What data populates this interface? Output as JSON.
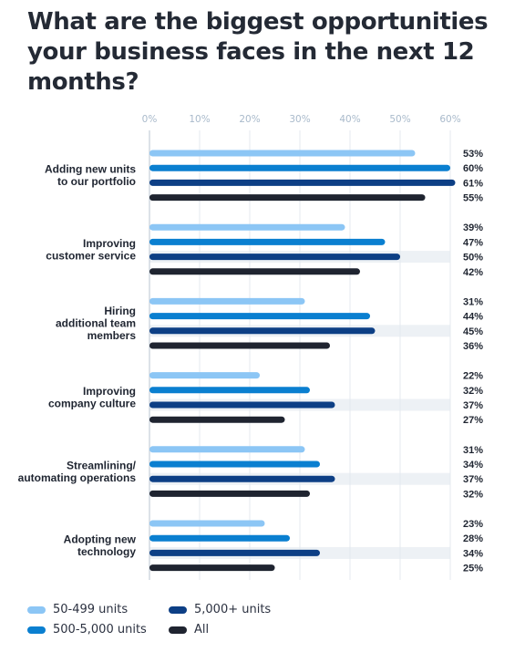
{
  "title": "What are the biggest opportunities your business faces in the next 12 months?",
  "colors": {
    "s1": "#8cc6f5",
    "s2": "#0a7fd0",
    "s3": "#0d3f85",
    "s4": "#1f2430",
    "tick": "#a9bacb",
    "grid": "#e4e9ef",
    "band": "#edf1f5",
    "label": "#1f2531"
  },
  "chart_data": {
    "type": "bar",
    "orientation": "horizontal",
    "xlim": [
      0,
      60
    ],
    "ticks": [
      "0%",
      "10%",
      "20%",
      "30%",
      "40%",
      "50%",
      "60%"
    ],
    "tick_values": [
      0,
      10,
      20,
      30,
      40,
      50,
      60
    ],
    "categories": [
      [
        "Adding new units",
        "to our portfolio"
      ],
      [
        "Improving",
        "customer service"
      ],
      [
        "Hiring",
        "additional team",
        "members"
      ],
      [
        "Improving",
        "company culture"
      ],
      [
        "Streamlining/",
        "automating operations"
      ],
      [
        "Adopting new",
        "technology"
      ]
    ],
    "series": [
      {
        "name": "50-499 units",
        "color": "#8cc6f5",
        "values": [
          53,
          39,
          31,
          22,
          31,
          23
        ]
      },
      {
        "name": "500-5,000 units",
        "color": "#0a7fd0",
        "values": [
          60,
          47,
          44,
          32,
          34,
          28
        ]
      },
      {
        "name": "5,000+ units",
        "color": "#0d3f85",
        "values": [
          61,
          50,
          45,
          37,
          37,
          34
        ]
      },
      {
        "name": "All",
        "color": "#1f2430",
        "values": [
          55,
          42,
          36,
          27,
          32,
          25
        ]
      }
    ],
    "value_labels": [
      [
        "53%",
        "60%",
        "61%",
        "55%"
      ],
      [
        "39%",
        "47%",
        "50%",
        "42%"
      ],
      [
        "31%",
        "44%",
        "45%",
        "36%"
      ],
      [
        "22%",
        "32%",
        "37%",
        "27%"
      ],
      [
        "31%",
        "34%",
        "37%",
        "32%"
      ],
      [
        "23%",
        "28%",
        "34%",
        "25%"
      ]
    ],
    "legend_position": "bottom-left",
    "grid": true
  }
}
